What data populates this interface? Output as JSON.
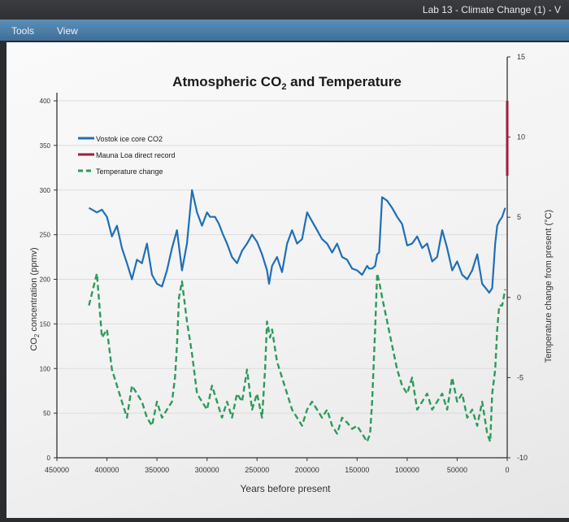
{
  "window": {
    "title": "Lab 13 - Climate Change (1) - V"
  },
  "menu": {
    "items": [
      "Tools",
      "View"
    ]
  },
  "chart_data": {
    "type": "line",
    "title_main": "Atmospheric CO",
    "title_sub": "2",
    "title_rest": " and Temperature",
    "xlabel": "Years before present",
    "ylabel_left_main": "CO",
    "ylabel_left_sub": "2",
    "ylabel_left_rest": " concentration (ppmv)",
    "ylabel_right": "Temperature change from present (°C)",
    "xlim": [
      450000,
      0
    ],
    "ylim_left": [
      0,
      400
    ],
    "ylim_right": [
      -10,
      15
    ],
    "x_ticks": [
      450000,
      400000,
      350000,
      300000,
      250000,
      200000,
      150000,
      100000,
      50000,
      0
    ],
    "y_left_ticks": [
      0,
      50,
      100,
      150,
      200,
      250,
      300,
      350,
      400
    ],
    "y_right_ticks": [
      -10,
      -5,
      0,
      5,
      10,
      15
    ],
    "legend_position": "top-left",
    "colors": {
      "vostok": "#1f6fb5",
      "mauna": "#a01e3c",
      "temp": "#2e9a5a"
    },
    "series": [
      {
        "name": "Vostok ice core CO2",
        "style": "solid",
        "x": [
          418000,
          410000,
          405000,
          400000,
          395000,
          390000,
          385000,
          380000,
          375000,
          370000,
          365000,
          360000,
          355000,
          350000,
          345000,
          340000,
          335000,
          330000,
          325000,
          320000,
          315000,
          310000,
          305000,
          300000,
          297000,
          292000,
          288000,
          284000,
          280000,
          275000,
          270000,
          265000,
          260000,
          255000,
          250000,
          245000,
          240000,
          238000,
          235000,
          230000,
          225000,
          220000,
          215000,
          210000,
          205000,
          200000,
          195000,
          190000,
          185000,
          180000,
          175000,
          170000,
          165000,
          160000,
          155000,
          150000,
          145000,
          140000,
          138000,
          135000,
          132000,
          130000,
          128000,
          125000,
          120000,
          115000,
          110000,
          105000,
          100000,
          95000,
          90000,
          85000,
          80000,
          75000,
          70000,
          65000,
          60000,
          55000,
          50000,
          45000,
          40000,
          35000,
          30000,
          25000,
          20000,
          18000,
          15000,
          12000,
          10000,
          8000,
          5000,
          2000
        ],
        "values": [
          280,
          275,
          278,
          270,
          248,
          260,
          235,
          218,
          200,
          222,
          218,
          240,
          205,
          195,
          192,
          210,
          235,
          255,
          210,
          240,
          300,
          275,
          260,
          275,
          270,
          270,
          262,
          250,
          240,
          225,
          218,
          232,
          240,
          250,
          242,
          228,
          210,
          195,
          215,
          225,
          208,
          240,
          255,
          240,
          245,
          275,
          265,
          255,
          245,
          240,
          230,
          240,
          225,
          222,
          212,
          210,
          205,
          215,
          212,
          212,
          215,
          228,
          230,
          292,
          288,
          280,
          270,
          262,
          238,
          240,
          248,
          235,
          240,
          220,
          225,
          255,
          235,
          210,
          220,
          205,
          200,
          210,
          228,
          195,
          188,
          185,
          190,
          240,
          260,
          265,
          270,
          280
        ]
      },
      {
        "name": "Mauna Loa direct record",
        "style": "solid",
        "x": [
          8,
          0
        ],
        "values": [
          316,
          400
        ]
      },
      {
        "name": "Temperature change",
        "style": "dashed",
        "x": [
          418000,
          414000,
          410000,
          405000,
          400000,
          395000,
          390000,
          385000,
          380000,
          375000,
          370000,
          365000,
          360000,
          355000,
          350000,
          345000,
          340000,
          335000,
          332000,
          330000,
          328000,
          325000,
          320000,
          315000,
          312000,
          310000,
          305000,
          300000,
          295000,
          290000,
          285000,
          280000,
          275000,
          270000,
          265000,
          260000,
          255000,
          250000,
          245000,
          242000,
          240000,
          237000,
          235000,
          230000,
          225000,
          220000,
          215000,
          210000,
          205000,
          200000,
          195000,
          190000,
          185000,
          180000,
          175000,
          170000,
          165000,
          160000,
          155000,
          150000,
          145000,
          140000,
          137000,
          135000,
          132000,
          130000,
          128000,
          125000,
          120000,
          115000,
          110000,
          105000,
          100000,
          95000,
          90000,
          85000,
          80000,
          75000,
          70000,
          65000,
          60000,
          55000,
          50000,
          45000,
          40000,
          35000,
          30000,
          25000,
          20000,
          17000,
          15000,
          12000,
          10000,
          8000,
          5000,
          2000
        ],
        "values": [
          -0.5,
          0.5,
          1.5,
          -2.5,
          -2,
          -4.5,
          -5.5,
          -6.5,
          -7.5,
          -5.5,
          -6,
          -6.5,
          -7.5,
          -8,
          -6.5,
          -7.5,
          -7,
          -6.5,
          -5,
          -3,
          0,
          1,
          -1.5,
          -3.5,
          -5,
          -6,
          -6.5,
          -7,
          -5.5,
          -6.5,
          -7.5,
          -6.5,
          -7.5,
          -6,
          -6.5,
          -4.5,
          -7,
          -6,
          -7.5,
          -4.5,
          -1.5,
          -2.5,
          -2,
          -4,
          -5,
          -6,
          -7,
          -7.5,
          -8,
          -7,
          -6.5,
          -7,
          -7.5,
          -7,
          -8,
          -8.5,
          -7.5,
          -7.8,
          -8.2,
          -8,
          -8.5,
          -9,
          -8.5,
          -6.5,
          -2,
          1.5,
          1,
          0,
          -1.5,
          -3,
          -4.5,
          -5.5,
          -6,
          -5,
          -7,
          -6.5,
          -6,
          -7,
          -6.5,
          -6,
          -7,
          -5,
          -6.5,
          -6,
          -7.5,
          -7,
          -8,
          -6.5,
          -8.5,
          -9,
          -6,
          -4.5,
          -2,
          -0.5,
          -0.5,
          0.5
        ]
      }
    ]
  }
}
